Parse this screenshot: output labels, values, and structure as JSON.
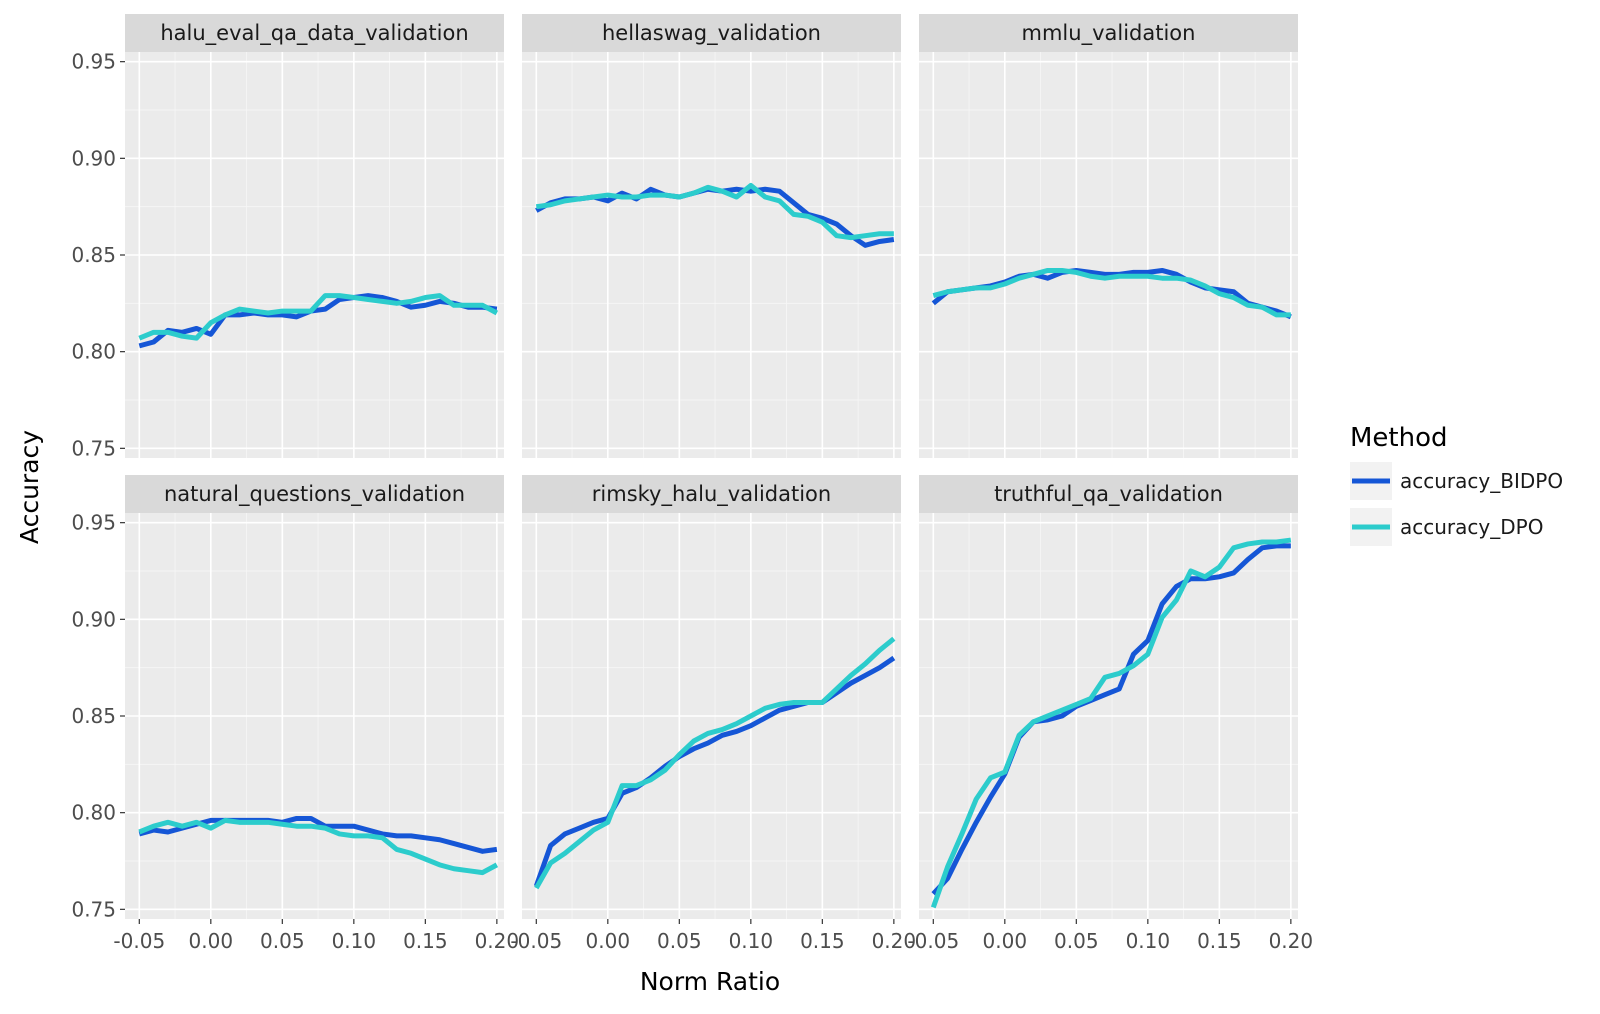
{
  "chart_data": {
    "type": "line",
    "facets": [
      "halu_eval_qa_data_validation",
      "hellaswag_validation",
      "mmlu_validation",
      "natural_questions_validation",
      "rimsky_halu_validation",
      "truthful_qa_validation"
    ],
    "xlabel": "Norm Ratio",
    "ylabel": "Accuracy",
    "xlim": [
      -0.06,
      0.205
    ],
    "ylim": [
      0.745,
      0.955
    ],
    "x_ticks": [
      -0.05,
      0.0,
      0.05,
      0.1,
      0.15,
      0.2
    ],
    "x_tick_labels": [
      "-0.05",
      "0.00",
      "0.05",
      "0.10",
      "0.15",
      "0.20"
    ],
    "y_ticks": [
      0.75,
      0.8,
      0.85,
      0.9,
      0.95
    ],
    "y_tick_labels": [
      "0.75",
      "0.80",
      "0.85",
      "0.90",
      "0.95"
    ],
    "grid": true,
    "legend": {
      "title": "Method",
      "position": "right"
    },
    "series_names": [
      "accuracy_BIDPO",
      "accuracy_DPO"
    ],
    "colors": {
      "accuracy_BIDPO": "#1556d6",
      "accuracy_DPO": "#2ccccc"
    },
    "x": [
      -0.05,
      -0.04,
      -0.03,
      -0.02,
      -0.01,
      0.0,
      0.01,
      0.02,
      0.03,
      0.04,
      0.05,
      0.06,
      0.07,
      0.08,
      0.09,
      0.1,
      0.11,
      0.12,
      0.13,
      0.14,
      0.15,
      0.16,
      0.17,
      0.18,
      0.19,
      0.2
    ],
    "panels": [
      {
        "facet": "halu_eval_qa_data_validation",
        "series": [
          {
            "name": "accuracy_BIDPO",
            "values": [
              0.803,
              0.805,
              0.811,
              0.81,
              0.812,
              0.809,
              0.819,
              0.819,
              0.82,
              0.819,
              0.819,
              0.818,
              0.821,
              0.822,
              0.827,
              0.828,
              0.829,
              0.828,
              0.826,
              0.823,
              0.824,
              0.826,
              0.825,
              0.823,
              0.823,
              0.822
            ]
          },
          {
            "name": "accuracy_DPO",
            "values": [
              0.807,
              0.81,
              0.81,
              0.808,
              0.807,
              0.815,
              0.819,
              0.822,
              0.821,
              0.82,
              0.821,
              0.821,
              0.821,
              0.829,
              0.829,
              0.828,
              0.827,
              0.826,
              0.825,
              0.826,
              0.828,
              0.829,
              0.824,
              0.824,
              0.824,
              0.82
            ]
          }
        ]
      },
      {
        "facet": "hellaswag_validation",
        "series": [
          {
            "name": "accuracy_BIDPO",
            "values": [
              0.873,
              0.877,
              0.879,
              0.879,
              0.88,
              0.878,
              0.882,
              0.879,
              0.884,
              0.881,
              0.88,
              0.882,
              0.884,
              0.883,
              0.884,
              0.883,
              0.884,
              0.883,
              0.877,
              0.871,
              0.869,
              0.866,
              0.86,
              0.855,
              0.857,
              0.858
            ]
          },
          {
            "name": "accuracy_DPO",
            "values": [
              0.875,
              0.876,
              0.878,
              0.879,
              0.88,
              0.881,
              0.88,
              0.88,
              0.881,
              0.881,
              0.88,
              0.882,
              0.885,
              0.883,
              0.88,
              0.886,
              0.88,
              0.878,
              0.871,
              0.87,
              0.867,
              0.86,
              0.859,
              0.86,
              0.861,
              0.861
            ]
          }
        ]
      },
      {
        "facet": "mmlu_validation",
        "series": [
          {
            "name": "accuracy_BIDPO",
            "values": [
              0.825,
              0.831,
              0.832,
              0.833,
              0.834,
              0.836,
              0.839,
              0.84,
              0.838,
              0.841,
              0.842,
              0.841,
              0.84,
              0.84,
              0.841,
              0.841,
              0.842,
              0.84,
              0.836,
              0.833,
              0.832,
              0.831,
              0.825,
              0.823,
              0.821,
              0.818
            ]
          },
          {
            "name": "accuracy_DPO",
            "values": [
              0.829,
              0.831,
              0.832,
              0.833,
              0.833,
              0.835,
              0.838,
              0.84,
              0.842,
              0.842,
              0.841,
              0.839,
              0.838,
              0.839,
              0.839,
              0.839,
              0.838,
              0.838,
              0.837,
              0.834,
              0.83,
              0.828,
              0.824,
              0.823,
              0.819,
              0.819
            ]
          }
        ]
      },
      {
        "facet": "natural_questions_validation",
        "series": [
          {
            "name": "accuracy_BIDPO",
            "values": [
              0.789,
              0.791,
              0.79,
              0.792,
              0.794,
              0.796,
              0.796,
              0.796,
              0.796,
              0.796,
              0.795,
              0.797,
              0.797,
              0.793,
              0.793,
              0.793,
              0.791,
              0.789,
              0.788,
              0.788,
              0.787,
              0.786,
              0.784,
              0.782,
              0.78,
              0.781
            ]
          },
          {
            "name": "accuracy_DPO",
            "values": [
              0.79,
              0.793,
              0.795,
              0.793,
              0.795,
              0.792,
              0.796,
              0.795,
              0.795,
              0.795,
              0.794,
              0.793,
              0.793,
              0.792,
              0.789,
              0.788,
              0.788,
              0.787,
              0.781,
              0.779,
              0.776,
              0.773,
              0.771,
              0.77,
              0.769,
              0.773
            ]
          }
        ]
      },
      {
        "facet": "rimsky_halu_validation",
        "series": [
          {
            "name": "accuracy_BIDPO",
            "values": [
              0.762,
              0.783,
              0.789,
              0.792,
              0.795,
              0.797,
              0.81,
              0.813,
              0.818,
              0.824,
              0.829,
              0.833,
              0.836,
              0.84,
              0.842,
              0.845,
              0.849,
              0.853,
              0.855,
              0.857,
              0.857,
              0.862,
              0.867,
              0.871,
              0.875,
              0.88
            ]
          },
          {
            "name": "accuracy_DPO",
            "values": [
              0.761,
              0.774,
              0.779,
              0.785,
              0.791,
              0.795,
              0.814,
              0.814,
              0.817,
              0.822,
              0.83,
              0.837,
              0.841,
              0.843,
              0.846,
              0.85,
              0.854,
              0.856,
              0.857,
              0.857,
              0.857,
              0.864,
              0.871,
              0.877,
              0.884,
              0.89
            ]
          }
        ]
      },
      {
        "facet": "truthful_qa_validation",
        "series": [
          {
            "name": "accuracy_BIDPO",
            "values": [
              0.758,
              0.766,
              0.781,
              0.795,
              0.808,
              0.82,
              0.839,
              0.847,
              0.848,
              0.85,
              0.855,
              0.858,
              0.861,
              0.864,
              0.882,
              0.889,
              0.908,
              0.917,
              0.921,
              0.921,
              0.922,
              0.924,
              0.931,
              0.937,
              0.938,
              0.938
            ]
          },
          {
            "name": "accuracy_DPO",
            "values": [
              0.751,
              0.772,
              0.789,
              0.807,
              0.818,
              0.821,
              0.84,
              0.847,
              0.85,
              0.853,
              0.856,
              0.859,
              0.87,
              0.872,
              0.876,
              0.882,
              0.901,
              0.91,
              0.925,
              0.922,
              0.927,
              0.937,
              0.939,
              0.94,
              0.94,
              0.941
            ]
          }
        ]
      }
    ]
  }
}
